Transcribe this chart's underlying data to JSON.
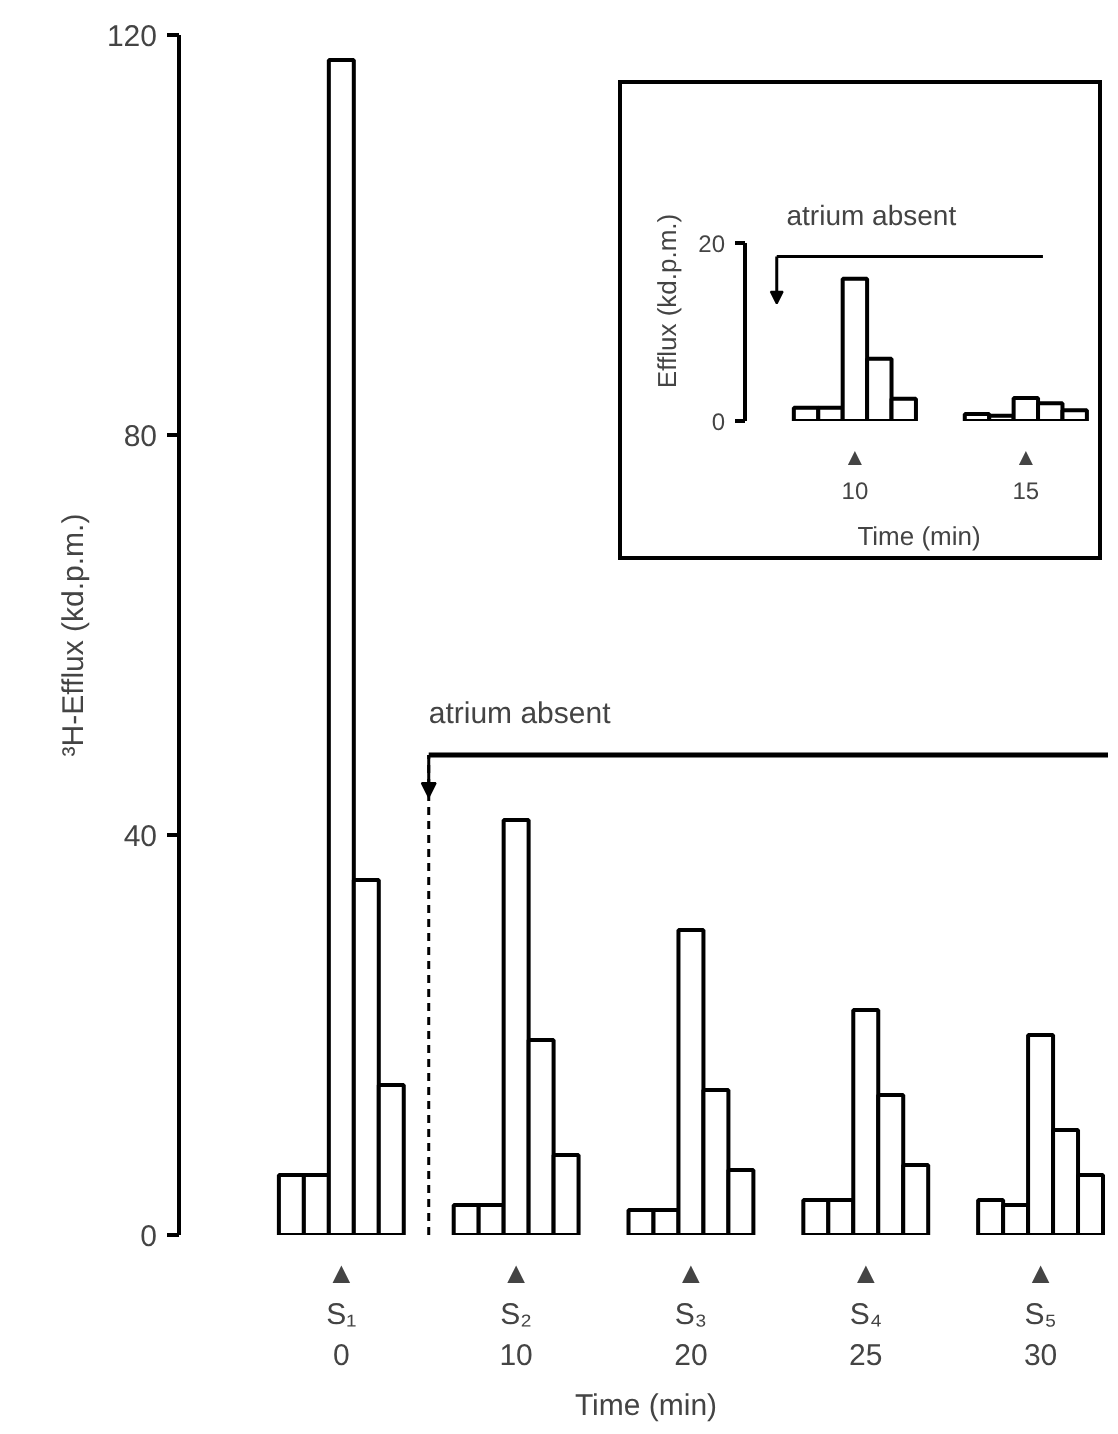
{
  "chart_data": [
    {
      "type": "bar",
      "xlabel": "Time (min)",
      "ylabel": "³H-Efflux (kd.p.m.)",
      "categories": [
        null,
        null,
        "▲\nS₁\n0",
        null,
        null,
        null,
        null,
        null,
        null,
        "▲\nS₂\n10",
        null,
        null,
        null,
        null,
        null,
        null,
        "▲\nS₃\n20",
        null,
        null,
        null,
        null,
        null,
        null,
        "▲\nS₄\n25",
        null,
        null,
        null,
        null,
        null,
        null,
        "▲\nS₅\n30",
        null,
        null
      ],
      "values": [
        6,
        6,
        117.5,
        35.5,
        15,
        null,
        null,
        3,
        3,
        41.5,
        19.5,
        8,
        null,
        null,
        2.5,
        2.5,
        30.5,
        14.5,
        6.5,
        null,
        null,
        3.5,
        3.5,
        22.5,
        14,
        7,
        null,
        null,
        3.5,
        3,
        20,
        10.5,
        6
      ],
      "color": "#ffffff",
      "ylim": [
        0,
        120
      ],
      "yticks": [
        0,
        40,
        80,
        120
      ],
      "ref_lines": [
        {
          "axis": "y",
          "value": 48,
          "label": "atrium absent"
        }
      ],
      "grid": false
    },
    {
      "type": "bar",
      "xlabel": "Time (min)",
      "ylabel": "Efflux (kd.p.m.)",
      "categories": [
        null,
        null,
        "▲\n10",
        null,
        null,
        null,
        null,
        null,
        null,
        "▲\n15",
        null,
        null
      ],
      "values": [
        1.5,
        1.5,
        16,
        7,
        2.5,
        null,
        null,
        0.8,
        0.6,
        2.6,
        2,
        1.2
      ],
      "color": "#ffffff",
      "ylim": [
        0,
        20
      ],
      "yticks": [
        0,
        20
      ],
      "ref_lines": [
        {
          "axis": "y",
          "value": 18.5,
          "label": "atrium absent"
        }
      ],
      "grid": false
    }
  ]
}
